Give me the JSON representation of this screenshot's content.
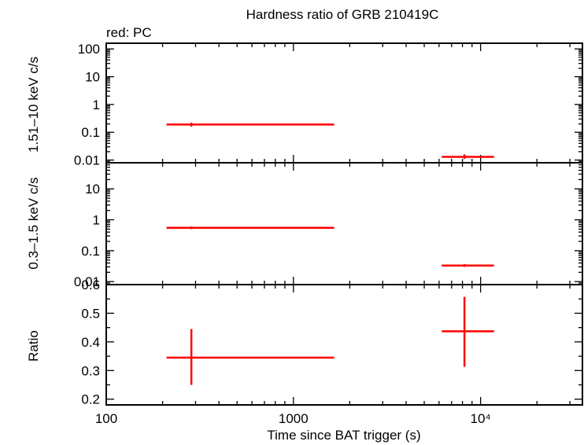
{
  "title": "Hardness ratio of GRB 210419C",
  "legend_label": "red: PC",
  "xlabel": "Time since BAT trigger (s)",
  "colors": {
    "data": "#ff0000",
    "axes": "#000000"
  },
  "chart_data": [
    {
      "type": "scatter",
      "panel": "top",
      "ylabel": "1.51–10 keV c/s",
      "yscale": "log",
      "xscale": "log",
      "xlim": [
        100,
        35000
      ],
      "ylim": [
        0.008,
        160
      ],
      "yticks": [
        0.01,
        0.1,
        1,
        10,
        100
      ],
      "ytick_labels": [
        "0.01",
        "0.1",
        "1",
        "10",
        "100"
      ],
      "series": [
        {
          "name": "PC",
          "color": "#ff0000",
          "points": [
            {
              "x": 285,
              "xlo": 210,
              "xhi": 1650,
              "y": 0.19,
              "ylo": 0.16,
              "yhi": 0.22
            },
            {
              "x": 8200,
              "xlo": 6200,
              "xhi": 11800,
              "y": 0.013,
              "ylo": 0.011,
              "yhi": 0.016
            }
          ]
        }
      ]
    },
    {
      "type": "scatter",
      "panel": "middle",
      "ylabel": "0.3–1.5 keV c/s",
      "yscale": "log",
      "xscale": "log",
      "xlim": [
        100,
        35000
      ],
      "ylim": [
        0.008,
        70
      ],
      "yticks": [
        0.01,
        0.1,
        1,
        10
      ],
      "ytick_labels": [
        "0.01",
        "0.1",
        "1",
        "10"
      ],
      "series": [
        {
          "name": "PC",
          "color": "#ff0000",
          "points": [
            {
              "x": 285,
              "xlo": 210,
              "xhi": 1650,
              "y": 0.55,
              "ylo": 0.5,
              "yhi": 0.61
            },
            {
              "x": 8200,
              "xlo": 6200,
              "xhi": 11800,
              "y": 0.033,
              "ylo": 0.03,
              "yhi": 0.037
            }
          ]
        }
      ]
    },
    {
      "type": "scatter",
      "panel": "bottom",
      "ylabel": "Ratio",
      "yscale": "linear",
      "xscale": "log",
      "xlim": [
        100,
        35000
      ],
      "ylim": [
        0.18,
        0.6
      ],
      "yticks": [
        0.2,
        0.3,
        0.4,
        0.5,
        0.6
      ],
      "ytick_labels": [
        "0.2",
        "0.3",
        "0.4",
        "0.5",
        "0.6"
      ],
      "xticks": [
        100,
        1000,
        10000
      ],
      "xtick_labels": [
        "100",
        "1000",
        "10⁴"
      ],
      "series": [
        {
          "name": "PC",
          "color": "#ff0000",
          "points": [
            {
              "x": 285,
              "xlo": 210,
              "xhi": 1650,
              "y": 0.345,
              "ylo": 0.25,
              "yhi": 0.445
            },
            {
              "x": 8200,
              "xlo": 6200,
              "xhi": 11800,
              "y": 0.437,
              "ylo": 0.313,
              "yhi": 0.557
            }
          ]
        }
      ]
    }
  ]
}
